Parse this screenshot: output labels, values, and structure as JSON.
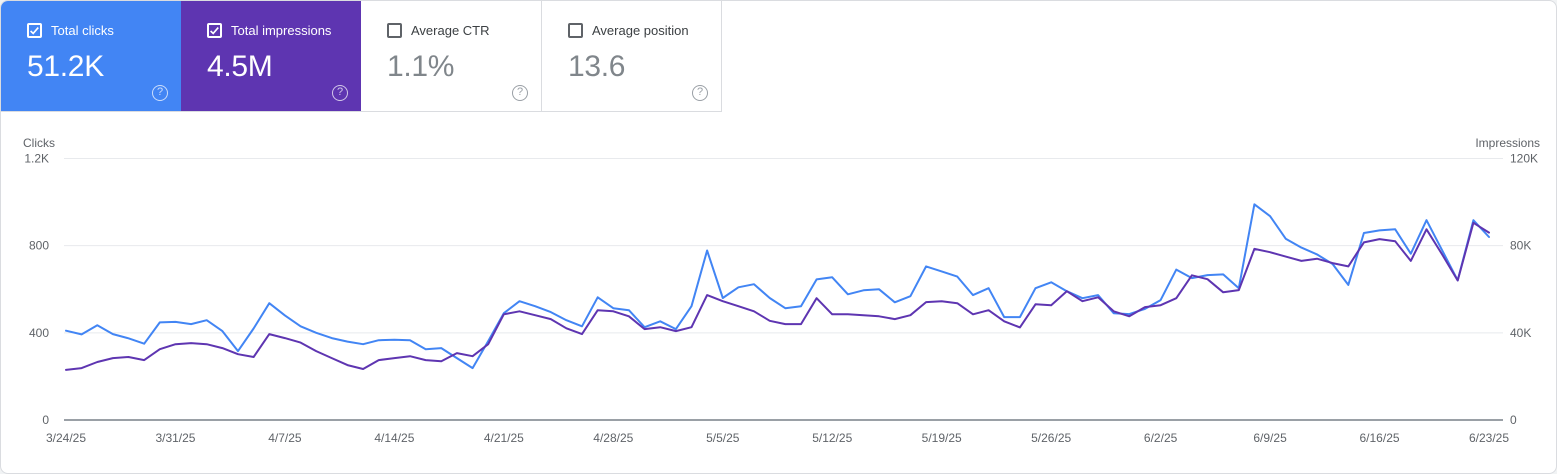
{
  "cards": [
    {
      "label": "Total clicks",
      "value": "51.2K",
      "selected": true,
      "checked": true,
      "color": "#4285f4"
    },
    {
      "label": "Total impressions",
      "value": "4.5M",
      "selected": true,
      "checked": true,
      "color": "#5e35b1"
    },
    {
      "label": "Average CTR",
      "value": "1.1%",
      "selected": false,
      "checked": false,
      "color": "#ffffff"
    },
    {
      "label": "Average position",
      "value": "13.6",
      "selected": false,
      "checked": false,
      "color": "#ffffff"
    }
  ],
  "help_icon_glyph": "?",
  "colors": {
    "clicks_accent": "#4285f4",
    "impressions_accent": "#5e35b1",
    "gridline": "#e8eaed",
    "axis_line": "#9aa0a6",
    "tick_text": "#5f6368",
    "card_border": "#dadce0",
    "unselected_value_text": "#80868b"
  },
  "chart_data": {
    "type": "line",
    "left_axis": {
      "label": "Clicks",
      "max": 1200,
      "ticks": [
        "1.2K",
        "800",
        "400",
        "0"
      ]
    },
    "right_axis": {
      "label": "Impressions",
      "max": 120000,
      "ticks": [
        "120K",
        "80K",
        "40K",
        "0"
      ]
    },
    "x_tick_labels": [
      "3/24/25",
      "3/31/25",
      "4/7/25",
      "4/14/25",
      "4/21/25",
      "4/28/25",
      "5/5/25",
      "5/12/25",
      "5/19/25",
      "5/26/25",
      "6/2/25",
      "6/9/25",
      "6/16/25",
      "6/23/25"
    ],
    "x_days_per_tick": 7,
    "grid": true,
    "series": [
      {
        "name": "Total clicks",
        "axis": "left",
        "color": "#4285f4",
        "values": [
          410,
          393,
          435,
          394,
          375,
          350,
          448,
          450,
          440,
          458,
          408,
          316,
          420,
          536,
          480,
          430,
          400,
          376,
          360,
          348,
          366,
          368,
          366,
          325,
          330,
          284,
          238,
          362,
          490,
          545,
          522,
          495,
          458,
          430,
          563,
          513,
          504,
          426,
          453,
          417,
          522,
          778,
          560,
          609,
          623,
          560,
          513,
          522,
          645,
          655,
          577,
          595,
          600,
          540,
          568,
          705,
          682,
          658,
          573,
          605,
          472,
          472,
          605,
          632,
          591,
          559,
          573,
          490,
          486,
          510,
          550,
          690,
          651,
          665,
          668,
          605,
          990,
          935,
          832,
          791,
          760,
          716,
          620,
          858,
          870,
          875,
          763,
          917,
          779,
          641,
          917,
          840
        ]
      },
      {
        "name": "Total impressions",
        "axis": "right",
        "color": "#5e35b1",
        "values": [
          23000,
          23800,
          26600,
          28400,
          28900,
          27500,
          32500,
          34800,
          35300,
          34800,
          33000,
          30200,
          28900,
          39400,
          37600,
          35500,
          31600,
          28400,
          25200,
          23400,
          27500,
          28400,
          29300,
          27500,
          27000,
          30700,
          29300,
          34800,
          48500,
          49900,
          48100,
          46300,
          42100,
          39400,
          50400,
          49900,
          47600,
          41700,
          42600,
          40800,
          42600,
          57300,
          54500,
          52200,
          49900,
          45500,
          44000,
          44000,
          55900,
          48500,
          48500,
          48100,
          47600,
          46300,
          48100,
          54100,
          54500,
          53600,
          48500,
          50400,
          45300,
          42500,
          53100,
          52700,
          59100,
          54500,
          56300,
          49900,
          47600,
          51800,
          52700,
          55900,
          66400,
          64600,
          58600,
          59600,
          78500,
          77000,
          75000,
          73000,
          74000,
          72000,
          70500,
          81500,
          83000,
          82000,
          73000,
          87500,
          76000,
          64000,
          90500,
          86000
        ]
      }
    ]
  }
}
